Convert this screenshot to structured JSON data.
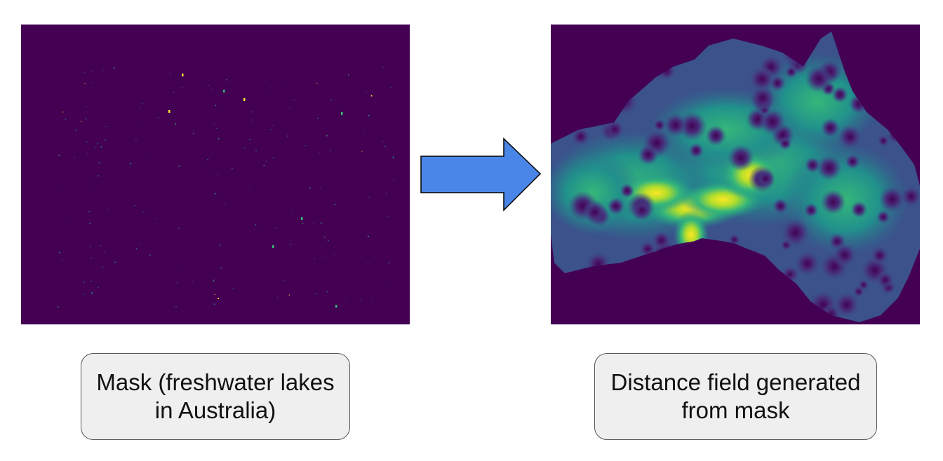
{
  "panels": {
    "mask": {
      "caption": "Mask (freshwater lakes in Australia)",
      "background_color": "#440154",
      "lake_colors": [
        "#fde725",
        "#35b779",
        "#21918c",
        "#3b528b"
      ]
    },
    "distance_field": {
      "caption": "Distance field generated from mask",
      "colormap": [
        "#440154",
        "#3b528b",
        "#21918c",
        "#35b779",
        "#fde725"
      ]
    }
  },
  "arrow": {
    "direction": "right",
    "fill_color": "#4a86e8",
    "stroke_color": "#000000"
  }
}
